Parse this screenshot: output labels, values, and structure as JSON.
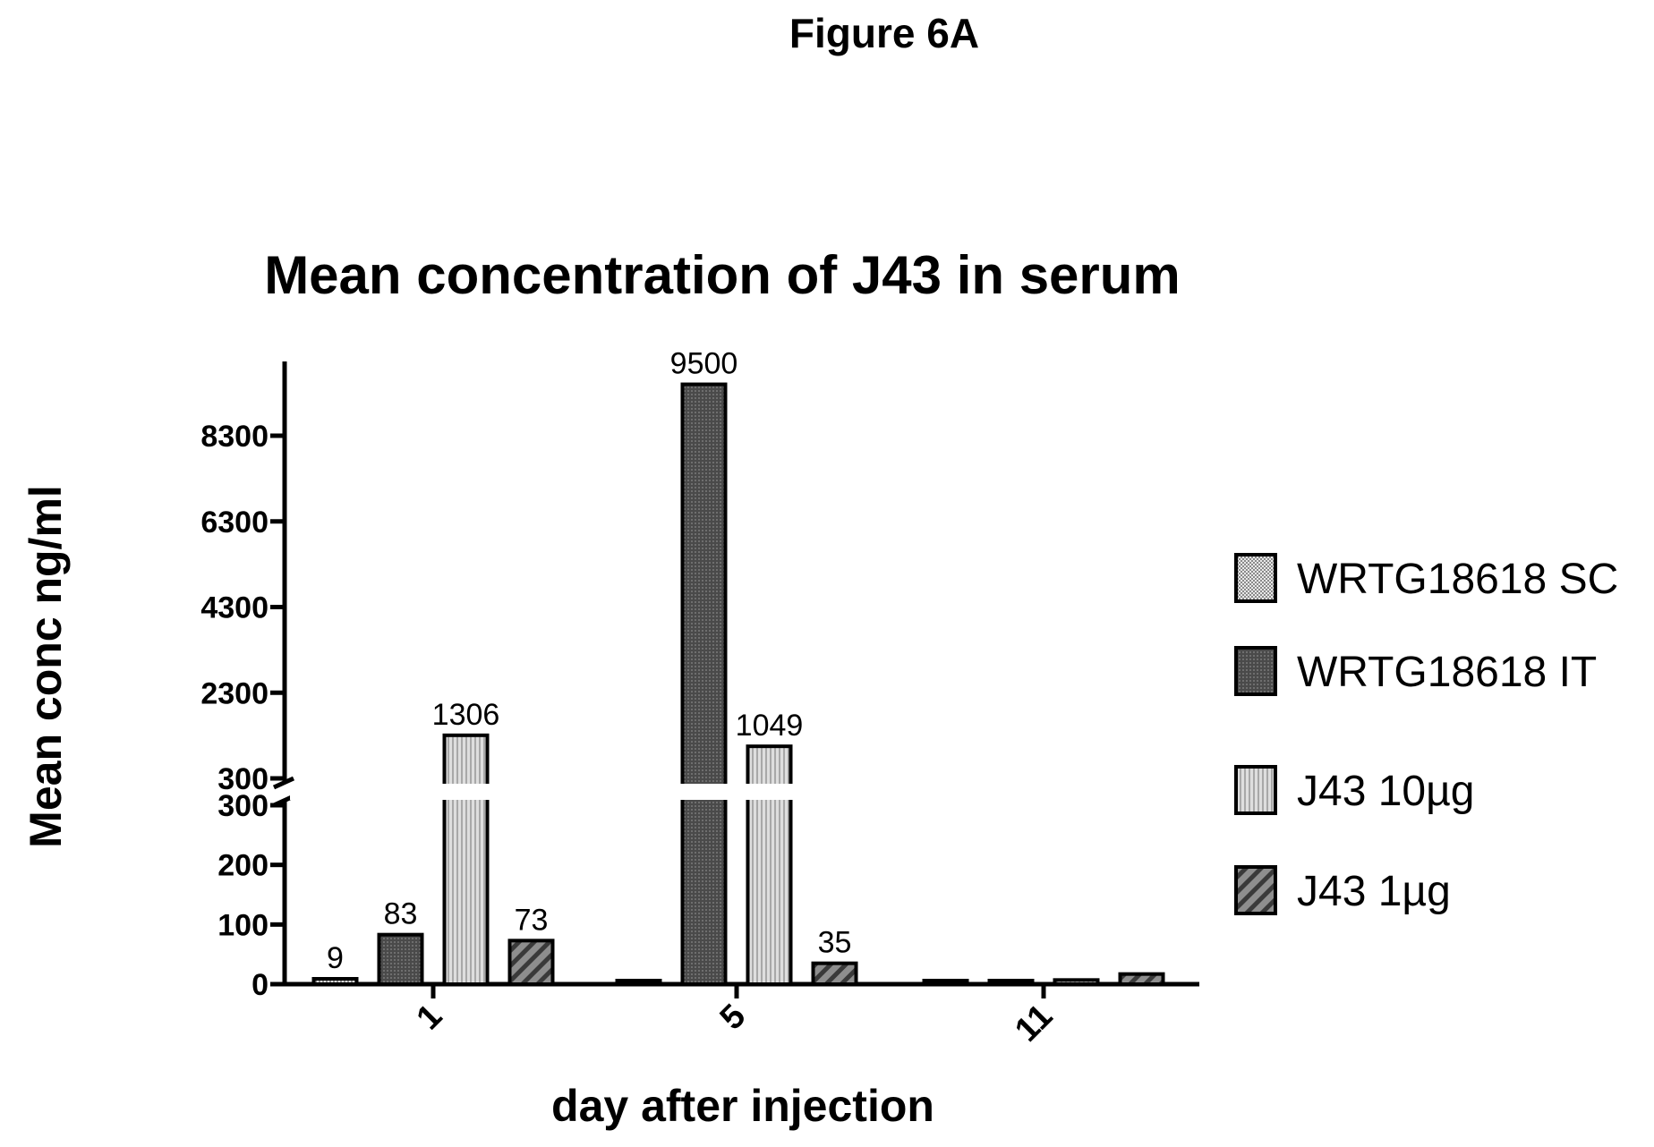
{
  "figure_label": "Figure 6A",
  "chart_data": {
    "type": "bar",
    "title": "Mean concentration of J43 in serum",
    "xlabel": "day after injection",
    "ylabel": "Mean conc ng/ml",
    "categories": [
      "1",
      "5",
      "11"
    ],
    "series": [
      {
        "name": "WRTG18618 SC",
        "values": [
          9,
          5,
          0
        ],
        "color": "#d4d4d4",
        "pattern": "checker"
      },
      {
        "name": "WRTG18618 IT",
        "values": [
          83,
          9500,
          3
        ],
        "color": "#5a5a5a",
        "pattern": "fine"
      },
      {
        "name": "J43 10µg",
        "values": [
          1306,
          1049,
          7
        ],
        "color": "#c4c4c4",
        "pattern": "vertical"
      },
      {
        "name": "J43 1µg",
        "values": [
          73,
          35,
          17
        ],
        "color": "#6c6c6c",
        "pattern": "diagonal"
      }
    ],
    "data_labels": [
      [
        "9",
        "83",
        "1306",
        "73"
      ],
      [
        "",
        "9500",
        "1049",
        "35"
      ],
      [
        "",
        "",
        "",
        ""
      ]
    ],
    "y_axis": {
      "broken": true,
      "lower_range": [
        0,
        300
      ],
      "lower_ticks": [
        "0",
        "100",
        "200",
        "300"
      ],
      "upper_range": [
        300,
        9500
      ],
      "upper_ticks": [
        "300",
        "2300",
        "4300",
        "6300",
        "8300"
      ]
    },
    "grid": false,
    "legend_position": "right"
  }
}
